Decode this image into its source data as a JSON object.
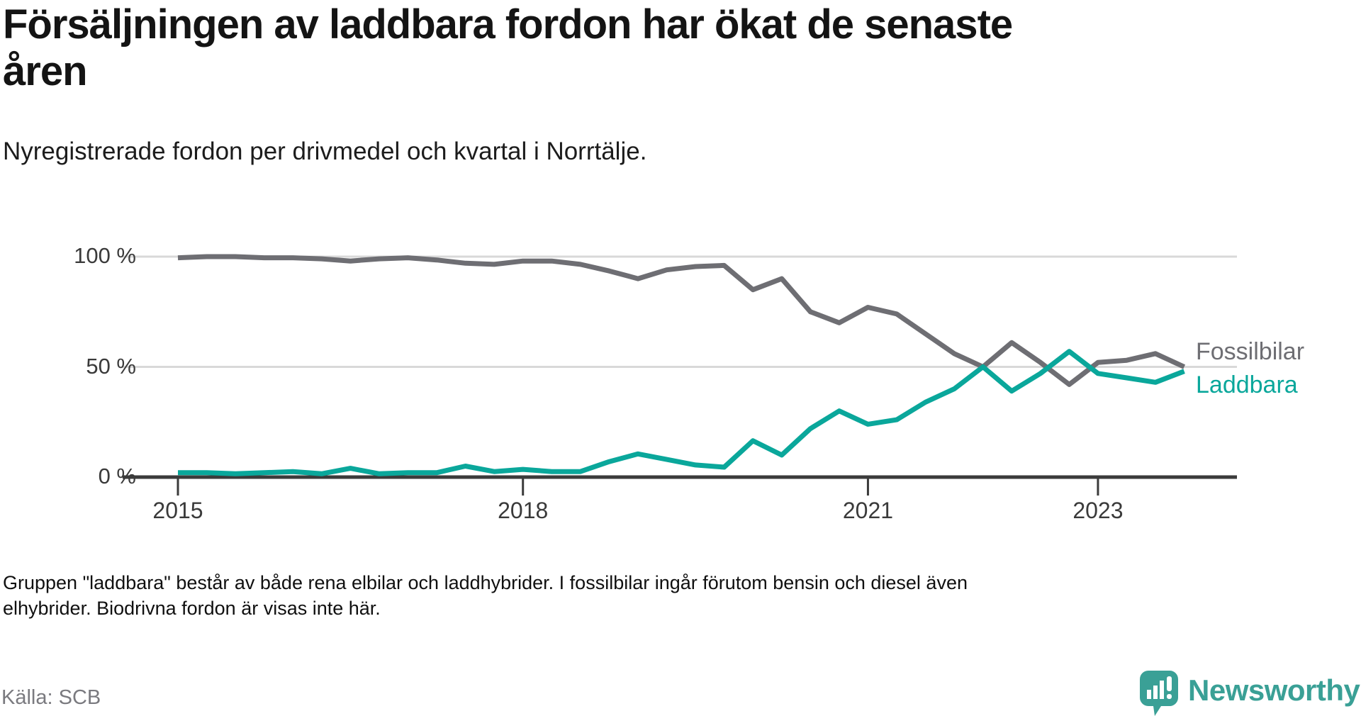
{
  "header": {
    "title_line1": "Försäljningen av laddbara fordon har ökat de senaste",
    "title_line2": "åren",
    "subtitle": "Nyregistrerade fordon per drivmedel och kvartal i Norrtälje."
  },
  "chart_data": {
    "type": "line",
    "title": "Nyregistrerade fordon per drivmedel och kvartal i Norrtälje",
    "unit": "%",
    "ylim": [
      0,
      100
    ],
    "grid": "horizontal",
    "legend_position": "end-of-line-labels-right",
    "categories": [
      "2015 K1",
      "2015 K2",
      "2015 K3",
      "2015 K4",
      "2016 K1",
      "2016 K2",
      "2016 K3",
      "2016 K4",
      "2017 K1",
      "2017 K2",
      "2017 K3",
      "2017 K4",
      "2018 K1",
      "2018 K2",
      "2018 K3",
      "2018 K4",
      "2019 K1",
      "2019 K2",
      "2019 K3",
      "2019 K4",
      "2020 K1",
      "2020 K2",
      "2020 K3",
      "2020 K4",
      "2021 K1",
      "2021 K2",
      "2021 K3",
      "2021 K4",
      "2022 K1",
      "2022 K2",
      "2022 K3",
      "2022 K4",
      "2023 K1",
      "2023 K2",
      "2023 K3",
      "2023 K4"
    ],
    "x_ticks": [
      {
        "label": "2015",
        "index": 0
      },
      {
        "label": "2018",
        "index": 12
      },
      {
        "label": "2021",
        "index": 24
      },
      {
        "label": "2023",
        "index": 32
      }
    ],
    "y_ticks": [
      {
        "label": "100 %",
        "value": 100
      },
      {
        "label": "50 %",
        "value": 50
      },
      {
        "label": "0 %",
        "value": 0
      }
    ],
    "series": [
      {
        "name": "Fossilbilar",
        "color": "#6e6e73",
        "values": [
          99.5,
          100,
          100,
          99.5,
          99.5,
          99,
          98,
          99,
          99.5,
          98.5,
          97,
          96.5,
          98,
          98,
          96.5,
          93.5,
          90,
          94,
          95.5,
          96,
          85,
          90,
          75,
          70,
          77,
          74,
          65,
          56,
          50,
          61,
          52,
          42,
          52,
          53,
          56,
          50
        ]
      },
      {
        "name": "Laddbara",
        "color": "#0aa79b",
        "values": [
          2,
          2,
          1.5,
          2,
          2.5,
          1.5,
          4,
          1.5,
          2,
          2,
          5,
          2.5,
          3.5,
          2.5,
          2.5,
          7,
          10.5,
          8,
          5.5,
          4.5,
          16.5,
          10,
          22,
          30,
          24,
          26,
          34,
          40,
          50,
          39,
          47,
          57,
          47,
          45,
          43,
          48
        ]
      }
    ],
    "axis_color": "#3b3b3b",
    "gridline_color": "#d9d9d9"
  },
  "footnote": {
    "line1": "Gruppen \"laddbara\" består av både rena elbilar och laddhybrider. I fossilbilar ingår förutom bensin och diesel även",
    "line2": "elhybrider. Biodrivna fordon är visas inte här."
  },
  "source": {
    "label": "Källa: SCB"
  },
  "branding": {
    "name": "Newsworthy",
    "logo_color": "#3aa096",
    "logo_icon": "bar-chart-speech-bubble-icon"
  }
}
